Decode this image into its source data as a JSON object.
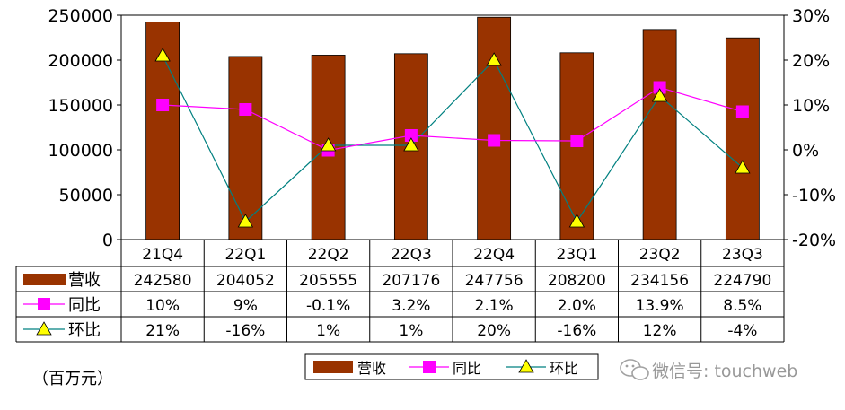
{
  "chart_data": {
    "type": "bar",
    "categories": [
      "21Q4",
      "22Q1",
      "22Q2",
      "22Q3",
      "22Q4",
      "23Q1",
      "23Q2",
      "23Q3"
    ],
    "series": [
      {
        "name": "营收",
        "type": "bar",
        "axis": "left",
        "values": [
          242580,
          204052,
          205555,
          207176,
          247756,
          208200,
          234156,
          224790
        ]
      },
      {
        "name": "同比",
        "type": "line",
        "axis": "right",
        "values": [
          10,
          9,
          -0.1,
          3.2,
          2.1,
          2.0,
          13.9,
          8.5
        ]
      },
      {
        "name": "环比",
        "type": "line",
        "axis": "right",
        "values": [
          21,
          -16,
          1,
          1,
          20,
          -16,
          12,
          -4
        ]
      }
    ],
    "left_axis": {
      "min": 0,
      "max": 250000,
      "ticks": [
        0,
        50000,
        100000,
        150000,
        200000,
        250000
      ],
      "tick_labels": [
        "0",
        "50000",
        "100000",
        "150000",
        "200000",
        "250000"
      ]
    },
    "right_axis": {
      "min": -20,
      "max": 30,
      "ticks": [
        -20,
        -10,
        0,
        10,
        20,
        30
      ],
      "tick_labels": [
        "-20%",
        "-10%",
        "0%",
        "10%",
        "20%",
        "30%"
      ]
    },
    "unit_label": "（百万元）",
    "colors": {
      "bar": "#993300",
      "yoy": "#ff00ff",
      "qoq": "#ffff00",
      "qoq_line": "#008080",
      "yoy_line": "#ff00ff"
    }
  },
  "table": {
    "rows": [
      {
        "label": "营收",
        "cells": [
          "242580",
          "204052",
          "205555",
          "207176",
          "247756",
          "208200",
          "234156",
          "224790"
        ]
      },
      {
        "label": "同比",
        "cells": [
          "10%",
          "9%",
          "-0.1%",
          "3.2%",
          "2.1%",
          "2.0%",
          "13.9%",
          "8.5%"
        ]
      },
      {
        "label": "环比",
        "cells": [
          "21%",
          "-16%",
          "1%",
          "1%",
          "20%",
          "-16%",
          "12%",
          "-4%"
        ]
      }
    ]
  },
  "legend": {
    "items": [
      "营收",
      "同比",
      "环比"
    ]
  },
  "watermark": {
    "text": "微信号: touchweb"
  }
}
